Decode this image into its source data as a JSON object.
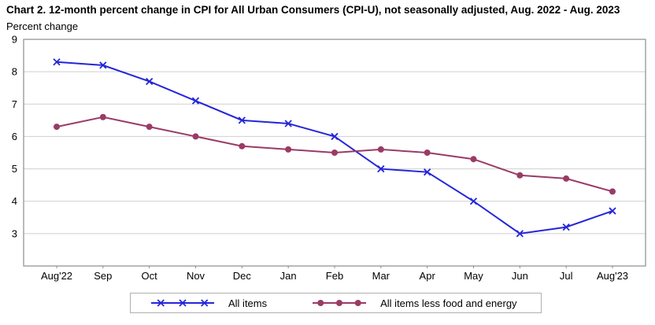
{
  "header": {
    "title": "Chart 2. 12-month percent change in CPI for All Urban Consumers (CPI-U), not seasonally adjusted, Aug. 2022 - Aug. 2023",
    "subtitle": "Percent change"
  },
  "colors": {
    "grid": "#cfcfcf",
    "frame": "#8c8c8c",
    "text": "#000000",
    "all_items_blue": "#2526d9",
    "core_maroon": "#9a3b66",
    "legend_border": "#b0b0b0"
  },
  "chart_data": {
    "type": "line",
    "title": "Chart 2. 12-month percent change in CPI for All Urban Consumers (CPI-U), not seasonally adjusted, Aug. 2022 - Aug. 2023",
    "xlabel": "",
    "ylabel": "Percent change",
    "categories": [
      "Aug'22",
      "Sep",
      "Oct",
      "Nov",
      "Dec",
      "Jan",
      "Feb",
      "Mar",
      "Apr",
      "May",
      "Jun",
      "Jul",
      "Aug'23"
    ],
    "series": [
      {
        "name": "All items",
        "color": "#2526d9",
        "marker": "x",
        "values": [
          8.3,
          8.2,
          7.7,
          7.1,
          6.5,
          6.4,
          6.0,
          5.0,
          4.9,
          4.0,
          3.0,
          3.2,
          3.7
        ]
      },
      {
        "name": "All items less food and energy",
        "color": "#9a3b66",
        "marker": "circle",
        "values": [
          6.3,
          6.6,
          6.3,
          6.0,
          5.7,
          5.6,
          5.5,
          5.6,
          5.5,
          5.3,
          4.8,
          4.7,
          4.3
        ]
      }
    ],
    "ylim": [
      2,
      9
    ],
    "yticks": [
      3,
      4,
      5,
      6,
      7,
      8,
      9
    ],
    "grid": true,
    "legend_position": "bottom"
  }
}
